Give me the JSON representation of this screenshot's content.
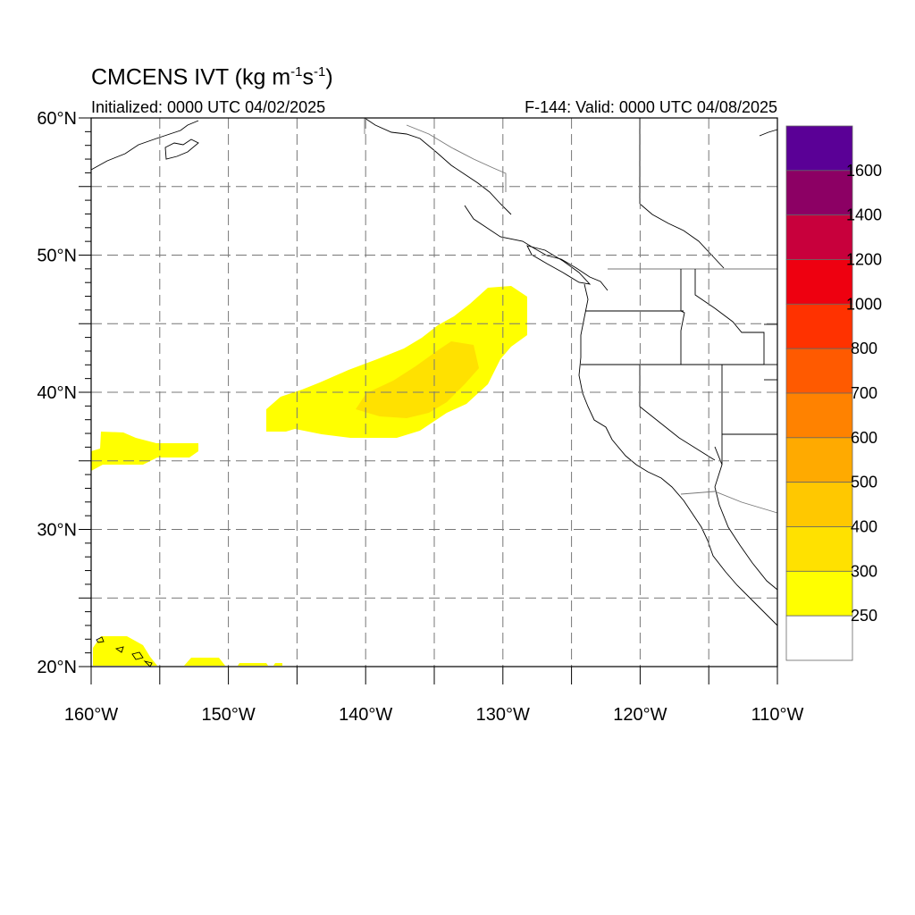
{
  "title": {
    "main": "CMCENS IVT (kg m",
    "sup1": "-1",
    "mid": "s",
    "sup2": "-1",
    "end": ")"
  },
  "subtitle_left": "Initialized: 0000 UTC 04/02/2025",
  "subtitle_right": "F-144: Valid: 0000 UTC 04/08/2025",
  "lat_labels": [
    "60°N",
    "50°N",
    "40°N",
    "30°N",
    "20°N"
  ],
  "lon_labels": [
    "160°W",
    "150°W",
    "140°W",
    "130°W",
    "120°W",
    "110°W"
  ],
  "colorbar": {
    "labels": [
      "1600",
      "1400",
      "1200",
      "1000",
      "800",
      "700",
      "600",
      "500",
      "400",
      "300",
      "250"
    ],
    "colors": [
      "#5a0096",
      "#8c0064",
      "#c8003c",
      "#ee0010",
      "#ff3200",
      "#ff5a00",
      "#ff8200",
      "#ffaa00",
      "#ffc800",
      "#ffe100",
      "#ffff00",
      "#ffffff"
    ]
  },
  "map_extent": {
    "lon": [
      -160,
      -110
    ],
    "lat": [
      20,
      60
    ]
  },
  "ivt_fields": [
    {
      "name": "main-atmospheric-river",
      "level": 250,
      "color": "#ffff00"
    },
    {
      "name": "ar-core",
      "level": 300,
      "color": "#ffe100"
    },
    {
      "name": "subtropical-band",
      "level": 250,
      "color": "#ffff00"
    },
    {
      "name": "hawaii-region",
      "level": 250,
      "color": "#ffff00"
    }
  ]
}
